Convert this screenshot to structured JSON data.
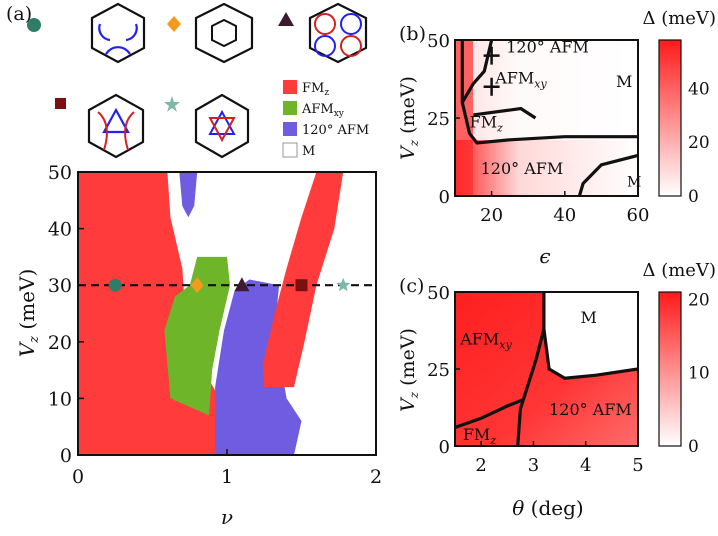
{
  "figure": {
    "panel_a_label": "(a)",
    "panel_b_label": "(b)",
    "panel_c_label": "(c)"
  },
  "fs_insets": [
    {
      "marker": "circle",
      "color": "#2f7d68",
      "ring": "blue"
    },
    {
      "marker": "diamond",
      "color": "#f39a1f",
      "ring": "hexagon"
    },
    {
      "marker": "triangle",
      "color": "#3d1a2e",
      "ring": "mixed"
    },
    {
      "marker": "square",
      "color": "#7a1010",
      "ring": "mixed-triangle"
    },
    {
      "marker": "star",
      "color": "#7fb7a8",
      "ring": "star"
    }
  ],
  "chart_data": [
    {
      "id": "a",
      "type": "heatmap",
      "title": "",
      "xlabel": "ν",
      "ylabel": "V_z (meV)",
      "xlim": [
        0,
        2
      ],
      "ylim": [
        0,
        50
      ],
      "xticks": [
        "0",
        "1",
        "2"
      ],
      "yticks": [
        "0",
        "10",
        "20",
        "30",
        "40",
        "50"
      ],
      "legend": {
        "position": "top-right",
        "entries": [
          {
            "label": "FM",
            "sub": "z",
            "color": "#ff3b3b"
          },
          {
            "label": "AFM",
            "sub": "xy",
            "color": "#6fb52a"
          },
          {
            "label": "120° AFM",
            "sub": "",
            "color": "#6f5ce0"
          },
          {
            "label": "M",
            "sub": "",
            "color": "#ffffff"
          }
        ]
      },
      "dashed_line_vz": 30,
      "markers": [
        {
          "shape": "circle",
          "nu": 0.25,
          "vz": 30,
          "color": "#2f7d68"
        },
        {
          "shape": "diamond",
          "nu": 0.8,
          "vz": 30,
          "color": "#f39a1f"
        },
        {
          "shape": "triangle",
          "nu": 1.1,
          "vz": 30,
          "color": "#3d1a2e"
        },
        {
          "shape": "square",
          "nu": 1.5,
          "vz": 30,
          "color": "#7a1010"
        },
        {
          "shape": "star",
          "nu": 1.78,
          "vz": 30,
          "color": "#7fb7a8"
        }
      ],
      "regions": [
        {
          "phase": "FM_z",
          "polygon": [
            [
              0,
              0
            ],
            [
              0.95,
              0
            ],
            [
              0.95,
              10
            ],
            [
              0.78,
              18
            ],
            [
              0.72,
              25
            ],
            [
              0.7,
              33
            ],
            [
              0.62,
              42
            ],
            [
              0.6,
              50
            ],
            [
              0,
              50
            ]
          ]
        },
        {
          "phase": "AFM_xy",
          "polygon": [
            [
              0.88,
              7
            ],
            [
              0.62,
              10
            ],
            [
              0.58,
              22
            ],
            [
              0.65,
              28
            ],
            [
              0.75,
              30
            ],
            [
              0.8,
              35
            ],
            [
              1.0,
              35
            ],
            [
              1.02,
              30
            ],
            [
              0.95,
              22
            ],
            [
              0.9,
              15
            ]
          ]
        },
        {
          "phase": "120° AFM",
          "polygon": [
            [
              0.92,
              0
            ],
            [
              1.45,
              0
            ],
            [
              1.5,
              6
            ],
            [
              1.4,
              10
            ],
            [
              1.32,
              22
            ],
            [
              1.35,
              30
            ],
            [
              1.15,
              31
            ],
            [
              1.05,
              29
            ],
            [
              0.98,
              22
            ],
            [
              0.92,
              12
            ]
          ]
        },
        {
          "phase": "120° AFM",
          "polygon": [
            [
              0.68,
              50
            ],
            [
              0.8,
              50
            ],
            [
              0.78,
              44
            ],
            [
              0.74,
              42
            ],
            [
              0.7,
              44
            ]
          ]
        },
        {
          "phase": "FM_z",
          "polygon": [
            [
              1.25,
              12
            ],
            [
              1.45,
              12
            ],
            [
              1.52,
              20
            ],
            [
              1.6,
              30
            ],
            [
              1.72,
              40
            ],
            [
              1.78,
              50
            ],
            [
              1.6,
              50
            ],
            [
              1.5,
              42
            ],
            [
              1.4,
              33
            ],
            [
              1.32,
              25
            ],
            [
              1.24,
              16
            ]
          ]
        }
      ]
    },
    {
      "id": "b",
      "type": "heatmap",
      "title": "",
      "xlabel": "ϵ",
      "ylabel": "V_z (meV)",
      "xlim": [
        10,
        60
      ],
      "ylim": [
        0,
        50
      ],
      "xticks": [
        "20",
        "40",
        "60"
      ],
      "yticks": [
        "0",
        "25",
        "50"
      ],
      "colorbar": {
        "label": "Δ (meV)",
        "range": [
          0,
          58
        ],
        "ticks": [
          "0",
          "20",
          "40"
        ]
      },
      "annotations": [
        "120° AFM",
        "AFM",
        "M",
        "FM",
        "120° AFM",
        "M"
      ],
      "annotation_subs": [
        "",
        "xy",
        "",
        "z",
        "",
        ""
      ],
      "boundaries": [
        [
          [
            12,
            50
          ],
          [
            12,
            30
          ],
          [
            14,
            20
          ],
          [
            16,
            17
          ],
          [
            25,
            18
          ],
          [
            40,
            19
          ],
          [
            60,
            19
          ]
        ],
        [
          [
            12,
            30
          ],
          [
            15,
            36
          ],
          [
            18,
            40
          ],
          [
            20,
            50
          ]
        ],
        [
          [
            15,
            26
          ],
          [
            28,
            28
          ],
          [
            32,
            25
          ]
        ],
        [
          [
            44,
            0
          ],
          [
            45,
            4
          ],
          [
            50,
            10
          ],
          [
            60,
            13
          ]
        ]
      ]
    },
    {
      "id": "c",
      "type": "heatmap",
      "title": "",
      "xlabel": "θ (deg)",
      "ylabel": "V_z (meV)",
      "xlim": [
        1.5,
        5
      ],
      "ylim": [
        0,
        50
      ],
      "xticks": [
        "2",
        "3",
        "4",
        "5"
      ],
      "yticks": [
        "0",
        "25",
        "50"
      ],
      "colorbar": {
        "label": "Δ (meV)",
        "range": [
          0,
          21
        ],
        "ticks": [
          "0",
          "10",
          "20"
        ]
      },
      "annotations": [
        "AFM",
        "M",
        "120° AFM",
        "FM"
      ],
      "annotation_subs": [
        "xy",
        "",
        "",
        "z"
      ],
      "boundaries": [
        [
          [
            3.2,
            50
          ],
          [
            3.2,
            38
          ],
          [
            3.05,
            28
          ],
          [
            2.9,
            20
          ],
          [
            2.75,
            12
          ],
          [
            2.7,
            0
          ]
        ],
        [
          [
            3.2,
            38
          ],
          [
            3.3,
            25
          ],
          [
            3.6,
            22
          ],
          [
            4.2,
            23
          ],
          [
            5,
            25
          ]
        ],
        [
          [
            1.5,
            6
          ],
          [
            2.0,
            9
          ],
          [
            2.5,
            13
          ],
          [
            2.8,
            15
          ]
        ]
      ]
    }
  ]
}
